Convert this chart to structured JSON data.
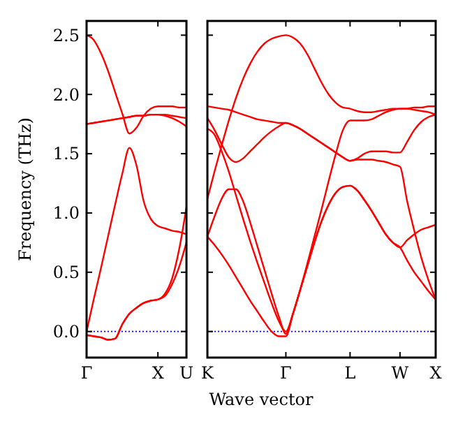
{
  "chart_data": [
    {
      "type": "line",
      "ylabel": "Frequency (THz)",
      "ylim": [
        -0.22,
        2.62
      ],
      "categories": [
        "Γ",
        null,
        null,
        null,
        null,
        null,
        null,
        null,
        null,
        null,
        "X",
        null,
        null,
        null,
        "U"
      ],
      "yticks": [
        {
          "value": 0,
          "label": "0.0"
        },
        {
          "value": 0.5,
          "label": "0.5"
        },
        {
          "value": 1,
          "label": "1.0"
        },
        {
          "value": 1.5,
          "label": "1.5"
        },
        {
          "value": 2,
          "label": "2.0"
        },
        {
          "value": 2.5,
          "label": "2.5"
        }
      ],
      "grid": false,
      "line_style": "solid",
      "ref_lines": [
        {
          "axis": "y",
          "value": 0,
          "color": "#0000ff",
          "line_style": "dotted"
        }
      ],
      "series": [
        {
          "color": "#ff0000",
          "values": [
            2.5,
            2.46,
            2.35,
            2.2,
            2.02,
            1.84,
            1.67,
            1.72,
            1.82,
            1.88,
            1.9,
            1.9,
            1.9,
            1.89,
            1.89
          ]
        },
        {
          "color": "#ff0000",
          "values": [
            1.75,
            1.76,
            1.77,
            1.78,
            1.79,
            1.8,
            1.81,
            1.82,
            1.82,
            1.83,
            1.83,
            1.83,
            1.82,
            1.81,
            1.8
          ]
        },
        {
          "color": "#ff0000",
          "values": [
            1.75,
            1.76,
            1.77,
            1.78,
            1.79,
            1.8,
            1.81,
            1.82,
            1.82,
            1.83,
            1.83,
            1.82,
            1.8,
            1.77,
            1.73
          ]
        },
        {
          "color": "#ff0000",
          "values": [
            0,
            0.27,
            0.53,
            0.8,
            1.07,
            1.33,
            1.55,
            1.4,
            1.1,
            0.95,
            0.89,
            0.87,
            0.85,
            0.84,
            0.82
          ]
        },
        {
          "color": "#ff0000",
          "values": [
            -0.03,
            -0.04,
            -0.05,
            -0.07,
            -0.06,
            0.06,
            0.15,
            0.2,
            0.24,
            0.26,
            0.27,
            0.32,
            0.45,
            0.7,
            1.05
          ]
        },
        {
          "color": "#ff0000",
          "values": [
            -0.03,
            -0.04,
            -0.05,
            -0.07,
            -0.06,
            0.06,
            0.15,
            0.2,
            0.24,
            0.26,
            0.27,
            0.3,
            0.4,
            0.55,
            0.75
          ]
        }
      ]
    },
    {
      "type": "line",
      "xlabel": "Wave vector",
      "ylim": [
        -0.22,
        2.62
      ],
      "tick_labels": "x",
      "categories": [
        "K",
        null,
        null,
        null,
        null,
        null,
        null,
        null,
        null,
        null,
        null,
        "Γ",
        null,
        null,
        null,
        null,
        null,
        null,
        null,
        null,
        "L",
        null,
        null,
        null,
        null,
        null,
        null,
        "W",
        null,
        null,
        null,
        null,
        "X"
      ],
      "yticks": [
        {
          "value": 0,
          "label": null
        },
        {
          "value": 0.5,
          "label": null
        },
        {
          "value": 1,
          "label": null
        },
        {
          "value": 1.5,
          "label": null
        },
        {
          "value": 2,
          "label": null
        },
        {
          "value": 2.5,
          "label": null
        }
      ],
      "grid": false,
      "line_style": "solid",
      "ref_lines": [
        {
          "axis": "y",
          "value": 0,
          "color": "#0000ff",
          "line_style": "dotted"
        }
      ],
      "series": [
        {
          "color": "#ff0000",
          "values": [
            1.12,
            1.35,
            1.57,
            1.78,
            1.97,
            2.13,
            2.26,
            2.36,
            2.43,
            2.47,
            2.49,
            2.5,
            2.48,
            2.43,
            2.34,
            2.22,
            2.1,
            2.0,
            1.93,
            1.89,
            1.88,
            1.86,
            1.85,
            1.85,
            1.86,
            1.87,
            1.88,
            1.88,
            1.88,
            1.89,
            1.89,
            1.9,
            1.9
          ]
        },
        {
          "color": "#ff0000",
          "values": [
            1.9,
            1.89,
            1.88,
            1.87,
            1.85,
            1.83,
            1.81,
            1.79,
            1.78,
            1.77,
            1.76,
            1.76,
            1.74,
            1.71,
            1.67,
            1.63,
            1.59,
            1.55,
            1.51,
            1.47,
            1.44,
            1.46,
            1.5,
            1.52,
            1.52,
            1.52,
            1.51,
            1.51,
            1.6,
            1.7,
            1.77,
            1.81,
            1.83
          ]
        },
        {
          "color": "#ff0000",
          "values": [
            1.8,
            1.7,
            1.58,
            1.47,
            1.43,
            1.46,
            1.52,
            1.58,
            1.64,
            1.69,
            1.73,
            1.76,
            1.74,
            1.71,
            1.67,
            1.63,
            1.59,
            1.55,
            1.51,
            1.47,
            1.44,
            1.45,
            1.45,
            1.45,
            1.44,
            1.43,
            1.41,
            1.39,
            1.1,
            0.85,
            0.62,
            0.43,
            0.27
          ]
        },
        {
          "color": "#ff0000",
          "values": [
            1.71,
            1.66,
            1.52,
            1.35,
            1.15,
            0.95,
            0.76,
            0.58,
            0.41,
            0.24,
            0.09,
            0,
            0.15,
            0.35,
            0.57,
            0.8,
            1.03,
            1.27,
            1.5,
            1.7,
            1.78,
            1.78,
            1.78,
            1.79,
            1.82,
            1.85,
            1.87,
            1.88,
            1.88,
            1.87,
            1.86,
            1.85,
            1.83
          ]
        },
        {
          "color": "#ff0000",
          "values": [
            0.8,
            0.97,
            1.12,
            1.2,
            1.2,
            1.1,
            0.92,
            0.72,
            0.52,
            0.32,
            0.13,
            -0.02,
            0.15,
            0.35,
            0.55,
            0.75,
            0.93,
            1.07,
            1.17,
            1.22,
            1.23,
            1.19,
            1.11,
            1.02,
            0.92,
            0.82,
            0.75,
            0.71,
            0.77,
            0.82,
            0.86,
            0.88,
            0.9
          ]
        },
        {
          "color": "#ff0000",
          "values": [
            0.8,
            0.73,
            0.65,
            0.56,
            0.46,
            0.36,
            0.26,
            0.17,
            0.08,
            0,
            -0.04,
            -0.04,
            0.15,
            0.35,
            0.55,
            0.75,
            0.93,
            1.07,
            1.17,
            1.22,
            1.23,
            1.19,
            1.11,
            1.02,
            0.92,
            0.82,
            0.75,
            0.71,
            0.6,
            0.5,
            0.42,
            0.34,
            0.27
          ]
        }
      ]
    }
  ]
}
